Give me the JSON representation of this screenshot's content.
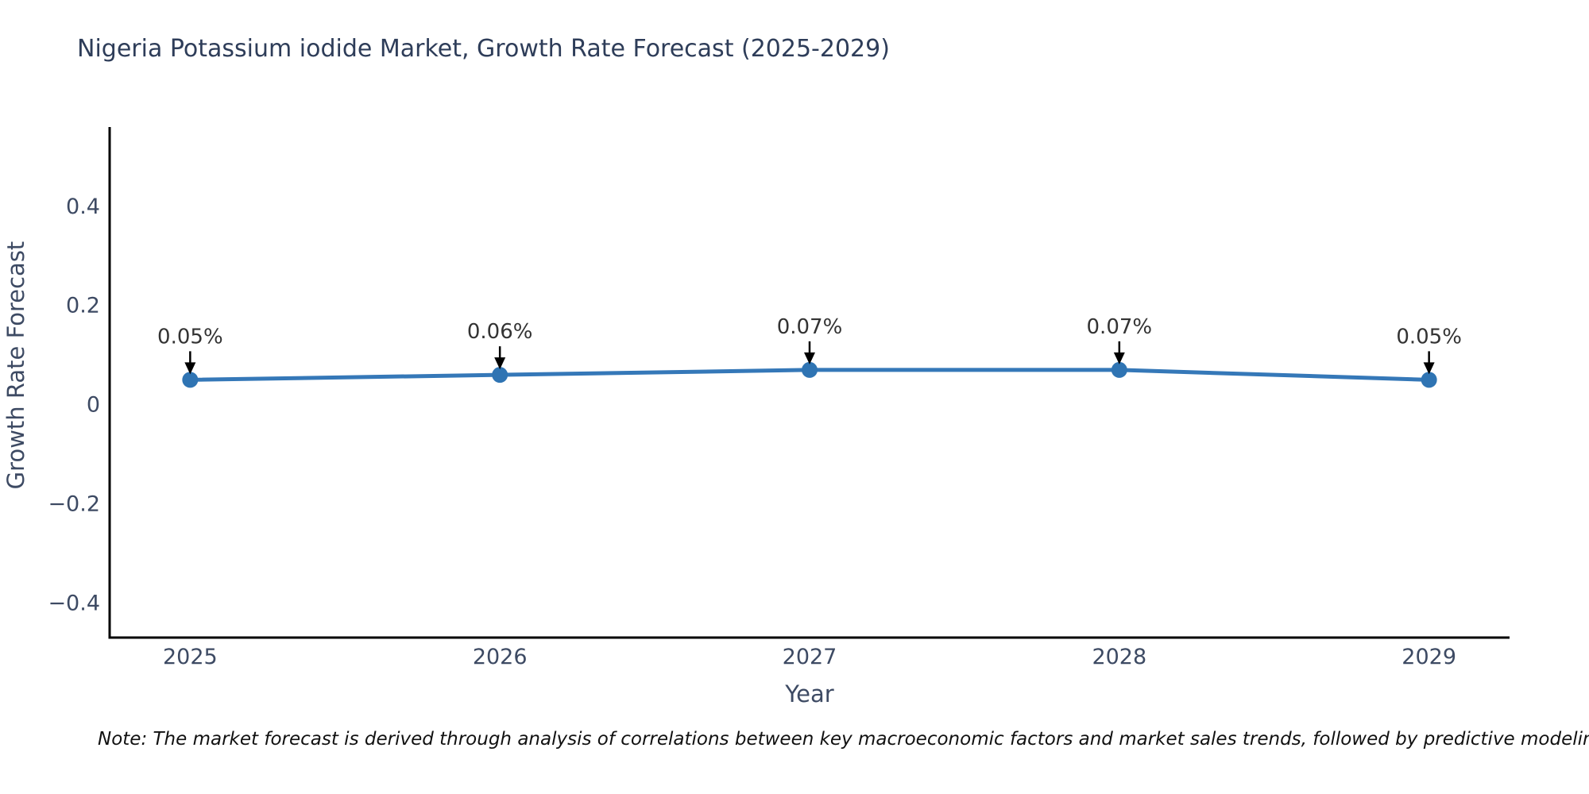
{
  "note": "Note: The market forecast is derived through analysis of correlations between key macroeconomic factors and market sales trends, followed by predictive modeling to project future sales.",
  "chart_data": {
    "type": "line",
    "title": "Nigeria Potassium iodide Market, Growth Rate Forecast (2025-2029)",
    "xlabel": "Year",
    "ylabel": "Growth Rate Forecast",
    "x": [
      2025,
      2026,
      2027,
      2028,
      2029
    ],
    "series": [
      {
        "name": "Growth Rate Forecast",
        "values": [
          0.05,
          0.06,
          0.07,
          0.07,
          0.05
        ]
      }
    ],
    "annotations": [
      "0.05%",
      "0.06%",
      "0.07%",
      "0.07%",
      "0.05%"
    ],
    "xticks": [
      2025,
      2026,
      2027,
      2028,
      2029
    ],
    "yticks": [
      0.4,
      0.2,
      0,
      -0.2,
      -0.4
    ],
    "xlim": [
      2024.74,
      2029.26
    ],
    "ylim": [
      -0.47,
      0.56
    ],
    "grid": false,
    "legend": "none",
    "colors": {
      "line": "#3578b8",
      "marker": "#2f74b3",
      "annotation_text": "#333333",
      "arrow": "#000000",
      "axis": "#000000",
      "tick_label": "#3d4a63",
      "axis_title": "#3d4a63",
      "title": "#2e3d59",
      "note": "#111111",
      "background": "#ffffff"
    }
  }
}
